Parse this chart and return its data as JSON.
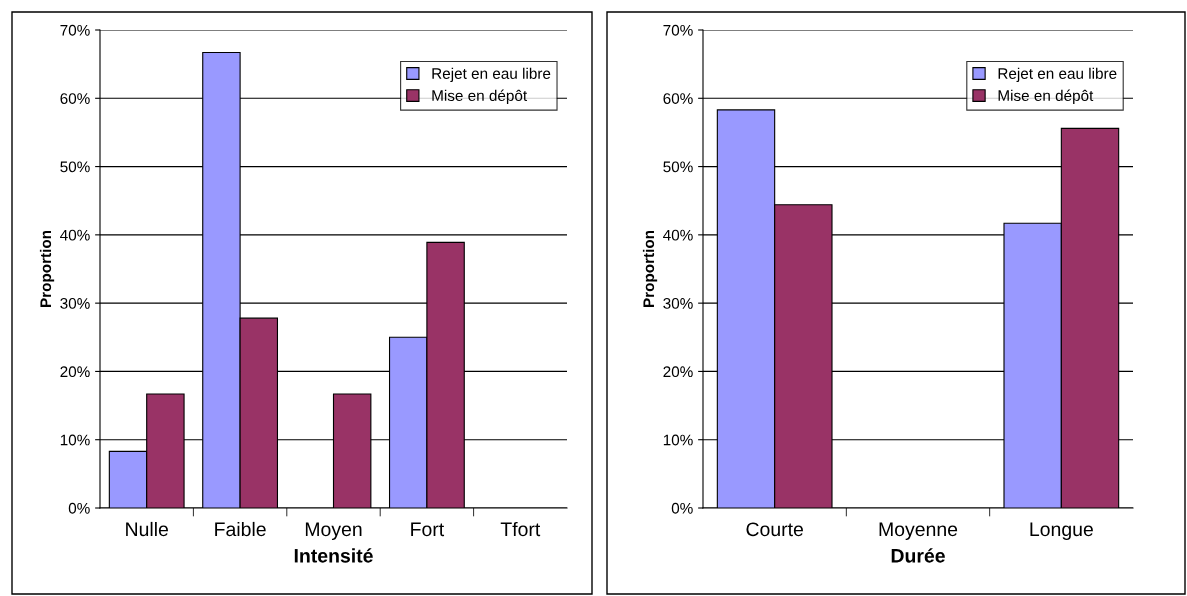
{
  "chart_data": [
    {
      "type": "bar",
      "xlabel": "Intensité",
      "ylabel": "Proportion",
      "categories": [
        "Nulle",
        "Faible",
        "Moyen",
        "Fort",
        "Tfort"
      ],
      "series": [
        {
          "name": "Rejet en eau libre",
          "color": "#9999ff",
          "values": [
            8.3,
            66.7,
            0,
            25.0,
            0
          ]
        },
        {
          "name": "Mise en dépôt",
          "color": "#993366",
          "values": [
            16.7,
            27.8,
            16.7,
            38.9,
            0
          ]
        }
      ],
      "ylim": [
        0,
        70
      ],
      "yticks": [
        {
          "value": 0,
          "label": "0%"
        },
        {
          "value": 10,
          "label": "10%"
        },
        {
          "value": 20,
          "label": "20%"
        },
        {
          "value": 30,
          "label": "30%"
        },
        {
          "value": 40,
          "label": "40%"
        },
        {
          "value": 50,
          "label": "50%"
        },
        {
          "value": 60,
          "label": "60%"
        },
        {
          "value": 70,
          "label": "70%"
        }
      ],
      "grid": "y",
      "legend": "top right"
    },
    {
      "type": "bar",
      "xlabel": "Durée",
      "ylabel": "Proportion",
      "categories": [
        "Courte",
        "Moyenne",
        "Longue"
      ],
      "series": [
        {
          "name": "Rejet en eau libre",
          "color": "#9999ff",
          "values": [
            58.3,
            0,
            41.7
          ]
        },
        {
          "name": "Mise en dépôt",
          "color": "#993366",
          "values": [
            44.4,
            0,
            55.6
          ]
        }
      ],
      "ylim": [
        0,
        70
      ],
      "yticks": [
        {
          "value": 0,
          "label": "0%"
        },
        {
          "value": 10,
          "label": "10%"
        },
        {
          "value": 20,
          "label": "20%"
        },
        {
          "value": 30,
          "label": "30%"
        },
        {
          "value": 40,
          "label": "40%"
        },
        {
          "value": 50,
          "label": "50%"
        },
        {
          "value": 60,
          "label": "60%"
        },
        {
          "value": 70,
          "label": "70%"
        }
      ],
      "grid": "y",
      "legend": "top right"
    }
  ]
}
